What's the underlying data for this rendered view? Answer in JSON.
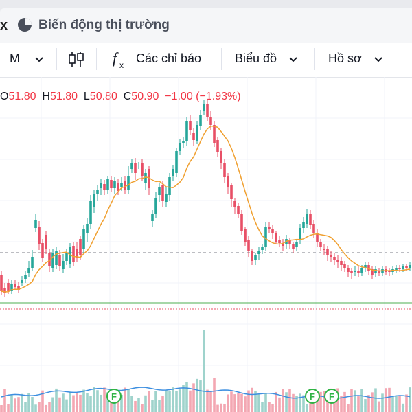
{
  "tab": {
    "close_label": "x",
    "title": "Biến động thị trường"
  },
  "toolbar": {
    "interval": "M",
    "indicators": "Các chỉ báo",
    "chart_label": "Biểu đồ",
    "profile_label": "Hồ sơ"
  },
  "ohlc": {
    "o_key": "O",
    "o": "51.80",
    "h_key": "H",
    "h": "51.80",
    "l_key": "L",
    "l": "50.80",
    "c_key": "C",
    "c": "50.90",
    "change": "−1.00",
    "change_pct": "(−1.93%)"
  },
  "colors": {
    "up": "#26a69a",
    "down": "#e84f66",
    "ma": "#f0a030",
    "volume_ma": "#3d8fe0",
    "support": "#4caf50",
    "resistance_dotted": "#e84f66"
  },
  "chart_data": {
    "type": "candlestick",
    "candles": [
      [
        2,
        52,
        28,
        58,
        22
      ],
      [
        7,
        32,
        26,
        40,
        20
      ],
      [
        12,
        40,
        28,
        46,
        24
      ],
      [
        17,
        28,
        38,
        44,
        24
      ],
      [
        22,
        38,
        34,
        44,
        30
      ],
      [
        27,
        36,
        30,
        42,
        26
      ],
      [
        32,
        40,
        44,
        50,
        36
      ],
      [
        37,
        46,
        52,
        58,
        40
      ],
      [
        42,
        54,
        62,
        72,
        48
      ],
      [
        47,
        62,
        78,
        88,
        58
      ],
      [
        52,
        120,
        132,
        140,
        114
      ],
      [
        57,
        122,
        96,
        130,
        88
      ],
      [
        62,
        98,
        76,
        104,
        70
      ],
      [
        67,
        110,
        90,
        116,
        82
      ],
      [
        72,
        84,
        64,
        90,
        56
      ],
      [
        77,
        62,
        84,
        90,
        56
      ],
      [
        82,
        66,
        86,
        92,
        60
      ],
      [
        87,
        80,
        64,
        88,
        58
      ],
      [
        92,
        60,
        72,
        82,
        54
      ],
      [
        97,
        72,
        84,
        90,
        66
      ],
      [
        102,
        68,
        92,
        98,
        62
      ],
      [
        107,
        94,
        70,
        100,
        64
      ],
      [
        112,
        90,
        76,
        100,
        70
      ],
      [
        117,
        104,
        80,
        108,
        74
      ],
      [
        122,
        90,
        118,
        124,
        82
      ],
      [
        127,
        112,
        126,
        134,
        100
      ],
      [
        132,
        126,
        160,
        168,
        118
      ],
      [
        137,
        150,
        170,
        176,
        142
      ],
      [
        142,
        170,
        176,
        182,
        160
      ],
      [
        147,
        178,
        186,
        192,
        168
      ],
      [
        152,
        184,
        176,
        190,
        168
      ],
      [
        157,
        176,
        192,
        196,
        170
      ],
      [
        162,
        190,
        178,
        196,
        172
      ],
      [
        167,
        178,
        188,
        194,
        170
      ],
      [
        172,
        186,
        174,
        192,
        168
      ],
      [
        177,
        180,
        186,
        194,
        174
      ],
      [
        182,
        188,
        176,
        196,
        170
      ],
      [
        187,
        176,
        196,
        210,
        170
      ],
      [
        192,
        206,
        214,
        220,
        200
      ],
      [
        197,
        214,
        200,
        222,
        190
      ],
      [
        202,
        212,
        212,
        216,
        206
      ],
      [
        207,
        214,
        196,
        220,
        188
      ],
      [
        212,
        186,
        200,
        206,
        176
      ],
      [
        217,
        206,
        178,
        210,
        168
      ],
      [
        222,
        130,
        140,
        146,
        122
      ],
      [
        227,
        140,
        164,
        172,
        134
      ],
      [
        232,
        168,
        180,
        186,
        158
      ],
      [
        237,
        182,
        160,
        188,
        150
      ],
      [
        242,
        158,
        170,
        180,
        150
      ],
      [
        247,
        168,
        194,
        200,
        160
      ],
      [
        252,
        196,
        206,
        212,
        188
      ],
      [
        257,
        200,
        232,
        236,
        194
      ],
      [
        262,
        232,
        244,
        250,
        226
      ],
      [
        267,
        244,
        246,
        252,
        236
      ],
      [
        272,
        246,
        276,
        282,
        240
      ],
      [
        277,
        276,
        262,
        284,
        256
      ],
      [
        282,
        258,
        248,
        266,
        240
      ],
      [
        287,
        246,
        270,
        276,
        242
      ],
      [
        292,
        268,
        284,
        292,
        262
      ],
      [
        297,
        290,
        300,
        306,
        284
      ],
      [
        302,
        300,
        282,
        308,
        276
      ],
      [
        307,
        282,
        270,
        290,
        262
      ],
      [
        312,
        270,
        244,
        276,
        238
      ],
      [
        317,
        248,
        230,
        252,
        224
      ],
      [
        322,
        232,
        214,
        236,
        206
      ],
      [
        327,
        214,
        194,
        220,
        186
      ],
      [
        332,
        196,
        180,
        200,
        170
      ],
      [
        337,
        182,
        162,
        186,
        150
      ],
      [
        342,
        160,
        150,
        164,
        140
      ],
      [
        347,
        152,
        140,
        156,
        134
      ],
      [
        352,
        140,
        116,
        146,
        110
      ],
      [
        357,
        118,
        100,
        122,
        94
      ],
      [
        362,
        102,
        86,
        108,
        78
      ],
      [
        367,
        86,
        72,
        90,
        66
      ],
      [
        372,
        74,
        80,
        84,
        66
      ],
      [
        377,
        82,
        86,
        92,
        74
      ],
      [
        382,
        88,
        92,
        96,
        82
      ],
      [
        387,
        92,
        122,
        128,
        86
      ],
      [
        392,
        122,
        118,
        128,
        112
      ],
      [
        397,
        118,
        112,
        124,
        104
      ],
      [
        402,
        112,
        100,
        116,
        96
      ],
      [
        407,
        102,
        98,
        108,
        92
      ],
      [
        412,
        98,
        94,
        104,
        86
      ],
      [
        417,
        96,
        104,
        110,
        90
      ],
      [
        422,
        102,
        96,
        106,
        90
      ],
      [
        427,
        96,
        90,
        100,
        84
      ],
      [
        432,
        92,
        100,
        104,
        86
      ],
      [
        437,
        102,
        120,
        126,
        96
      ],
      [
        442,
        120,
        128,
        136,
        112
      ],
      [
        447,
        126,
        140,
        148,
        120
      ],
      [
        452,
        140,
        124,
        146,
        118
      ],
      [
        457,
        126,
        112,
        132,
        106
      ],
      [
        462,
        112,
        100,
        118,
        92
      ],
      [
        467,
        100,
        92,
        104,
        86
      ],
      [
        472,
        90,
        88,
        96,
        80
      ],
      [
        477,
        90,
        80,
        94,
        72
      ],
      [
        482,
        80,
        78,
        86,
        70
      ],
      [
        487,
        78,
        74,
        84,
        66
      ],
      [
        492,
        74,
        70,
        80,
        62
      ],
      [
        497,
        72,
        66,
        78,
        58
      ],
      [
        502,
        68,
        62,
        72,
        56
      ],
      [
        507,
        62,
        56,
        66,
        48
      ],
      [
        512,
        58,
        54,
        62,
        46
      ],
      [
        517,
        56,
        58,
        64,
        50
      ],
      [
        522,
        58,
        54,
        64,
        48
      ],
      [
        527,
        54,
        62,
        66,
        50
      ],
      [
        532,
        62,
        66,
        70,
        56
      ],
      [
        537,
        66,
        58,
        70,
        52
      ],
      [
        542,
        60,
        52,
        64,
        46
      ],
      [
        547,
        54,
        60,
        64,
        48
      ],
      [
        552,
        58,
        54,
        62,
        50
      ],
      [
        557,
        54,
        60,
        64,
        50
      ],
      [
        562,
        60,
        56,
        64,
        52
      ],
      [
        567,
        58,
        56,
        62,
        50
      ],
      [
        572,
        56,
        60,
        64,
        52
      ],
      [
        577,
        58,
        62,
        66,
        54
      ],
      [
        582,
        62,
        60,
        66,
        56
      ],
      [
        587,
        60,
        64,
        68,
        56
      ],
      [
        592,
        64,
        62,
        68,
        58
      ],
      [
        597,
        62,
        66,
        70,
        58
      ]
    ],
    "volume_markers": [
      "F",
      "F",
      "F"
    ]
  }
}
